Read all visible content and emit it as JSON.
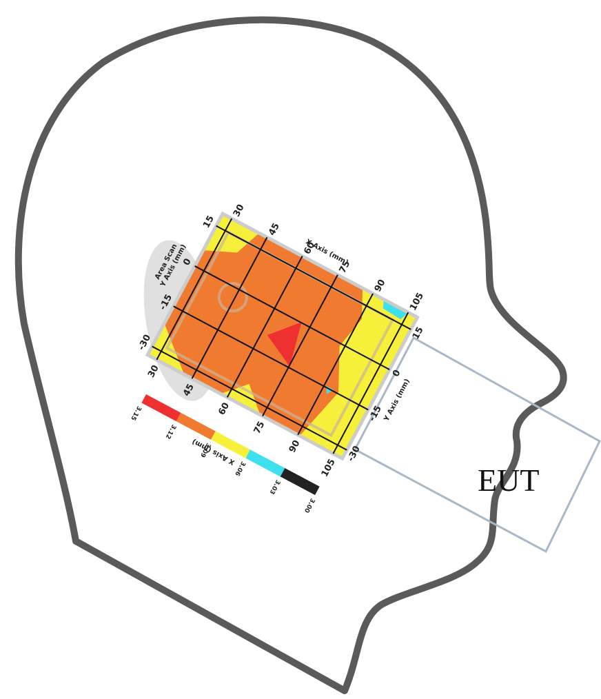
{
  "scan": {
    "title": "Area Scan",
    "y_axis_label": "Y Axis (mm)",
    "x_axis_label": "X Axis (mm)",
    "x_ticks_top": [
      "30",
      "45",
      "60",
      "75",
      "90",
      "105"
    ],
    "x_ticks_bottom": [
      "30",
      "45",
      "60",
      "75",
      "90",
      "105"
    ],
    "y_ticks_left": [
      "15",
      "0",
      "-15",
      "-30"
    ],
    "y_ticks_right": [
      "15",
      "0",
      "-15",
      "-30"
    ],
    "y_axis_label_right": "Y Axis (mm)"
  },
  "legend": {
    "axis_label": "X Axis (mm)",
    "values": [
      "3.15",
      "3.12",
      "3.09",
      "3.06",
      "3.03",
      "3.00"
    ]
  },
  "device": {
    "label": "EUT"
  }
}
